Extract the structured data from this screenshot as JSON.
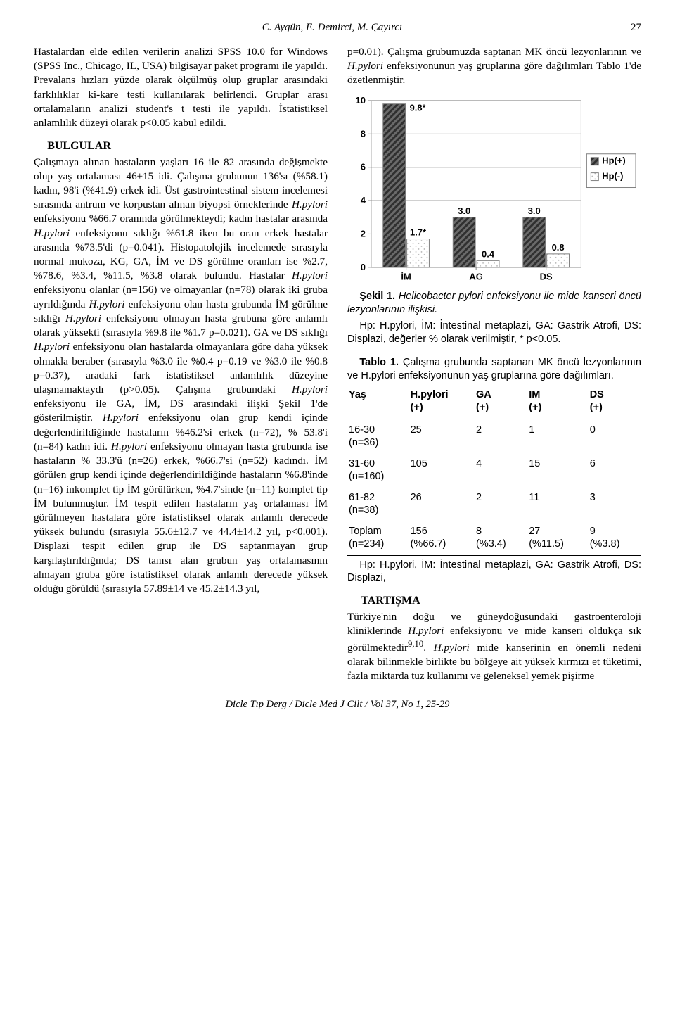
{
  "header": {
    "authors": "C. Aygün, E. Demirci, M. Çayırcı",
    "page": "27"
  },
  "left": {
    "p1": "Hastalardan elde edilen verilerin analizi SPSS 10.0 for Windows (SPSS Inc., Chicago, IL, USA) bilgisayar paket programı ile yapıldı. Prevalans hızları yüzde olarak ölçülmüş olup gruplar arasındaki farklılıklar ki-kare testi kullanılarak belirlendi. Gruplar arası ortalamaların analizi student's t testi ile yapıldı. İstatistiksel anlamlılık düzeyi olarak p<0.05 kabul edildi.",
    "h_bulgular": "BULGULAR",
    "p2a": "Çalışmaya alınan hastaların yaşları 16 ile 82 arasında değişmekte olup yaş ortalaması 46±15 idi. Çalışma grubunun 136'sı (%58.1) kadın, 98'i (%41.9) erkek idi. Üst gastrointestinal sistem incelemesi sırasında antrum ve korpustan alınan biyopsi örneklerinde ",
    "p2b": " enfeksiyonu %66.7 oranında görülmekteydi; kadın hastalar arasında ",
    "p2c": " enfeksiyonu sıklığı %61.8 iken bu oran erkek hastalar arasında %73.5'di (p=0.041). Histopatolojik incelemede sırasıyla normal mukoza, KG, GA, İM ve DS görülme oranları ise %2.7, %78.6, %3.4, %11.5, %3.8 olarak bulundu. Hastalar ",
    "p2d": " enfeksiyonu olanlar (n=156) ve olmayanlar (n=78) olarak iki gruba ayrıldığında ",
    "p2e": " enfeksiyonu olan hasta grubunda İM görülme sıklığı ",
    "p2f": " enfeksiyonu olmayan hasta grubuna göre anlamlı olarak yüksekti (sırasıyla %9.8 ile %1.7 p=0.021). GA ve DS sıklığı ",
    "p2g": " enfeksiyonu olan hastalarda olmayanlara göre daha yüksek olmakla beraber (sırasıyla %3.0 ile %0.4 p=0.19 ve %3.0 ile %0.8 p=0.37), aradaki fark istatistiksel anlamlılık düzeyine ulaşmamaktaydı (p>0.05). Çalışma grubundaki ",
    "p2h": " enfeksiyonu ile GA, İM, DS arasındaki ilişki Şekil 1'de gösterilmiştir. ",
    "p2i": " enfeksiyonu olan grup kendi içinde değerlendirildiğinde hastaların %46.2'si erkek (n=72), % 53.8'i (n=84) kadın idi. ",
    "p2j": " enfeksiyonu olmayan hasta grubunda ise hastaların % 33.3'ü (n=26) erkek, %66.7'si (n=52) kadındı. İM görülen grup kendi içinde değerlendirildiğinde hastaların %6.8'inde (n=16) inkomplet tip İM görülürken, %4.7'sinde (n=11) komplet tip İM bulunmuştur. İM tespit edilen hastaların yaş ortalaması İM görülmeyen hastalara göre istatistiksel olarak anlamlı derecede yüksek bulundu (sırasıyla 55.6±12.7 ve 44.4±14.2 yıl, p<0.001). Displazi tespit edilen grup ile DS saptanmayan grup karşılaştırıldığında; DS tanısı alan grubun yaş ortalamasının almayan gruba göre istatistiksel olarak anlamlı derecede yüksek olduğu görüldü (sırasıyla 57.89±14 ve 45.2±14.3 yıl,",
    "hp": "H.pylori"
  },
  "right": {
    "p1a": "p=0.01). Çalışma grubumuzda saptanan MK öncü lezyonlarının ve ",
    "p1b": " enfeksiyonunun yaş gruplarına göre dağılımları Tablo 1'de özetlenmiştir.",
    "hp": "H.pylori",
    "fig_caption_b": "Şekil 1.",
    "fig_caption": " Helicobacter pylori enfeksiyonu ile mide kanseri öncü lezyonlarının ilişkisi.",
    "fig_note": "Hp: H.pylori, İM: İntestinal metaplazi, GA: Gastrik Atrofi, DS: Displazi, değerler % olarak verilmiştir, * p<0.05.",
    "table_caption_b": "Tablo 1.",
    "table_caption": " Çalışma grubunda saptanan MK öncü lezyonlarının ve H.pylori enfeksiyonunun yaş gruplarına göre dağılımları.",
    "table": {
      "head": [
        "Yaş",
        "H.pylori\n(+)",
        "GA\n(+)",
        "IM\n(+)",
        "DS\n(+)"
      ],
      "rows": [
        [
          "16-30\n(n=36)",
          "25",
          "2",
          "1",
          "0"
        ],
        [
          "31-60\n(n=160)",
          "105",
          "4",
          "15",
          "6"
        ],
        [
          "61-82\n(n=38)",
          "26",
          "2",
          "11",
          "3"
        ],
        [
          "Toplam\n(n=234)",
          "156\n(%66.7)",
          "8\n(%3.4)",
          "27\n(%11.5)",
          "9\n(%3.8)"
        ]
      ]
    },
    "table_note": "Hp: H.pylori, İM: İntestinal metaplazi, GA: Gastrik Atrofi, DS: Displazi,",
    "h_tartisma": "TARTIŞMA",
    "p_tart_a": "Türkiye'nin doğu ve güneydoğusundaki gastroenteroloji kliniklerinde ",
    "p_tart_b": " enfeksiyonu ve mide kanseri oldukça sık görülmektedir",
    "p_tart_sup": "9,10",
    "p_tart_c": ". ",
    "p_tart_d": " mide kanserinin en önemli nedeni olarak bilinmekle birlikte bu bölgeye ait yüksek kırmızı et tüketimi, fazla miktarda tuz kullanımı ve geleneksel yemek pişirme"
  },
  "chart": {
    "type": "bar",
    "categories": [
      "İM",
      "AG",
      "DS"
    ],
    "series": [
      {
        "name": "Hp(+)",
        "values": [
          9.8,
          3.0,
          3.0
        ],
        "labels": [
          "9.8*",
          "3.0",
          "3.0"
        ],
        "fill": "hatch-dark"
      },
      {
        "name": "Hp(-)",
        "values": [
          1.7,
          0.4,
          0.8
        ],
        "labels": [
          "1.7*",
          "0.4",
          "0.8"
        ],
        "fill": "dots-light"
      }
    ],
    "ylim": [
      0,
      10
    ],
    "ytick_step": 2,
    "colors": {
      "border": "#808080",
      "grid": "#808080",
      "text": "#000000",
      "bg": "#ffffff",
      "hatch_fg": "#303030",
      "hatch_bg": "#6a6a6a",
      "dot_bg": "#ffffff",
      "dot_fg": "#b0b0b0",
      "legend_border": "#808080"
    },
    "fontsize_axis": 13,
    "fontsize_label": 13,
    "bar_gap_ratio": 0.05
  },
  "footer": "Dicle Tıp Derg / Dicle Med J Cilt / Vol 37, No 1, 25-29"
}
